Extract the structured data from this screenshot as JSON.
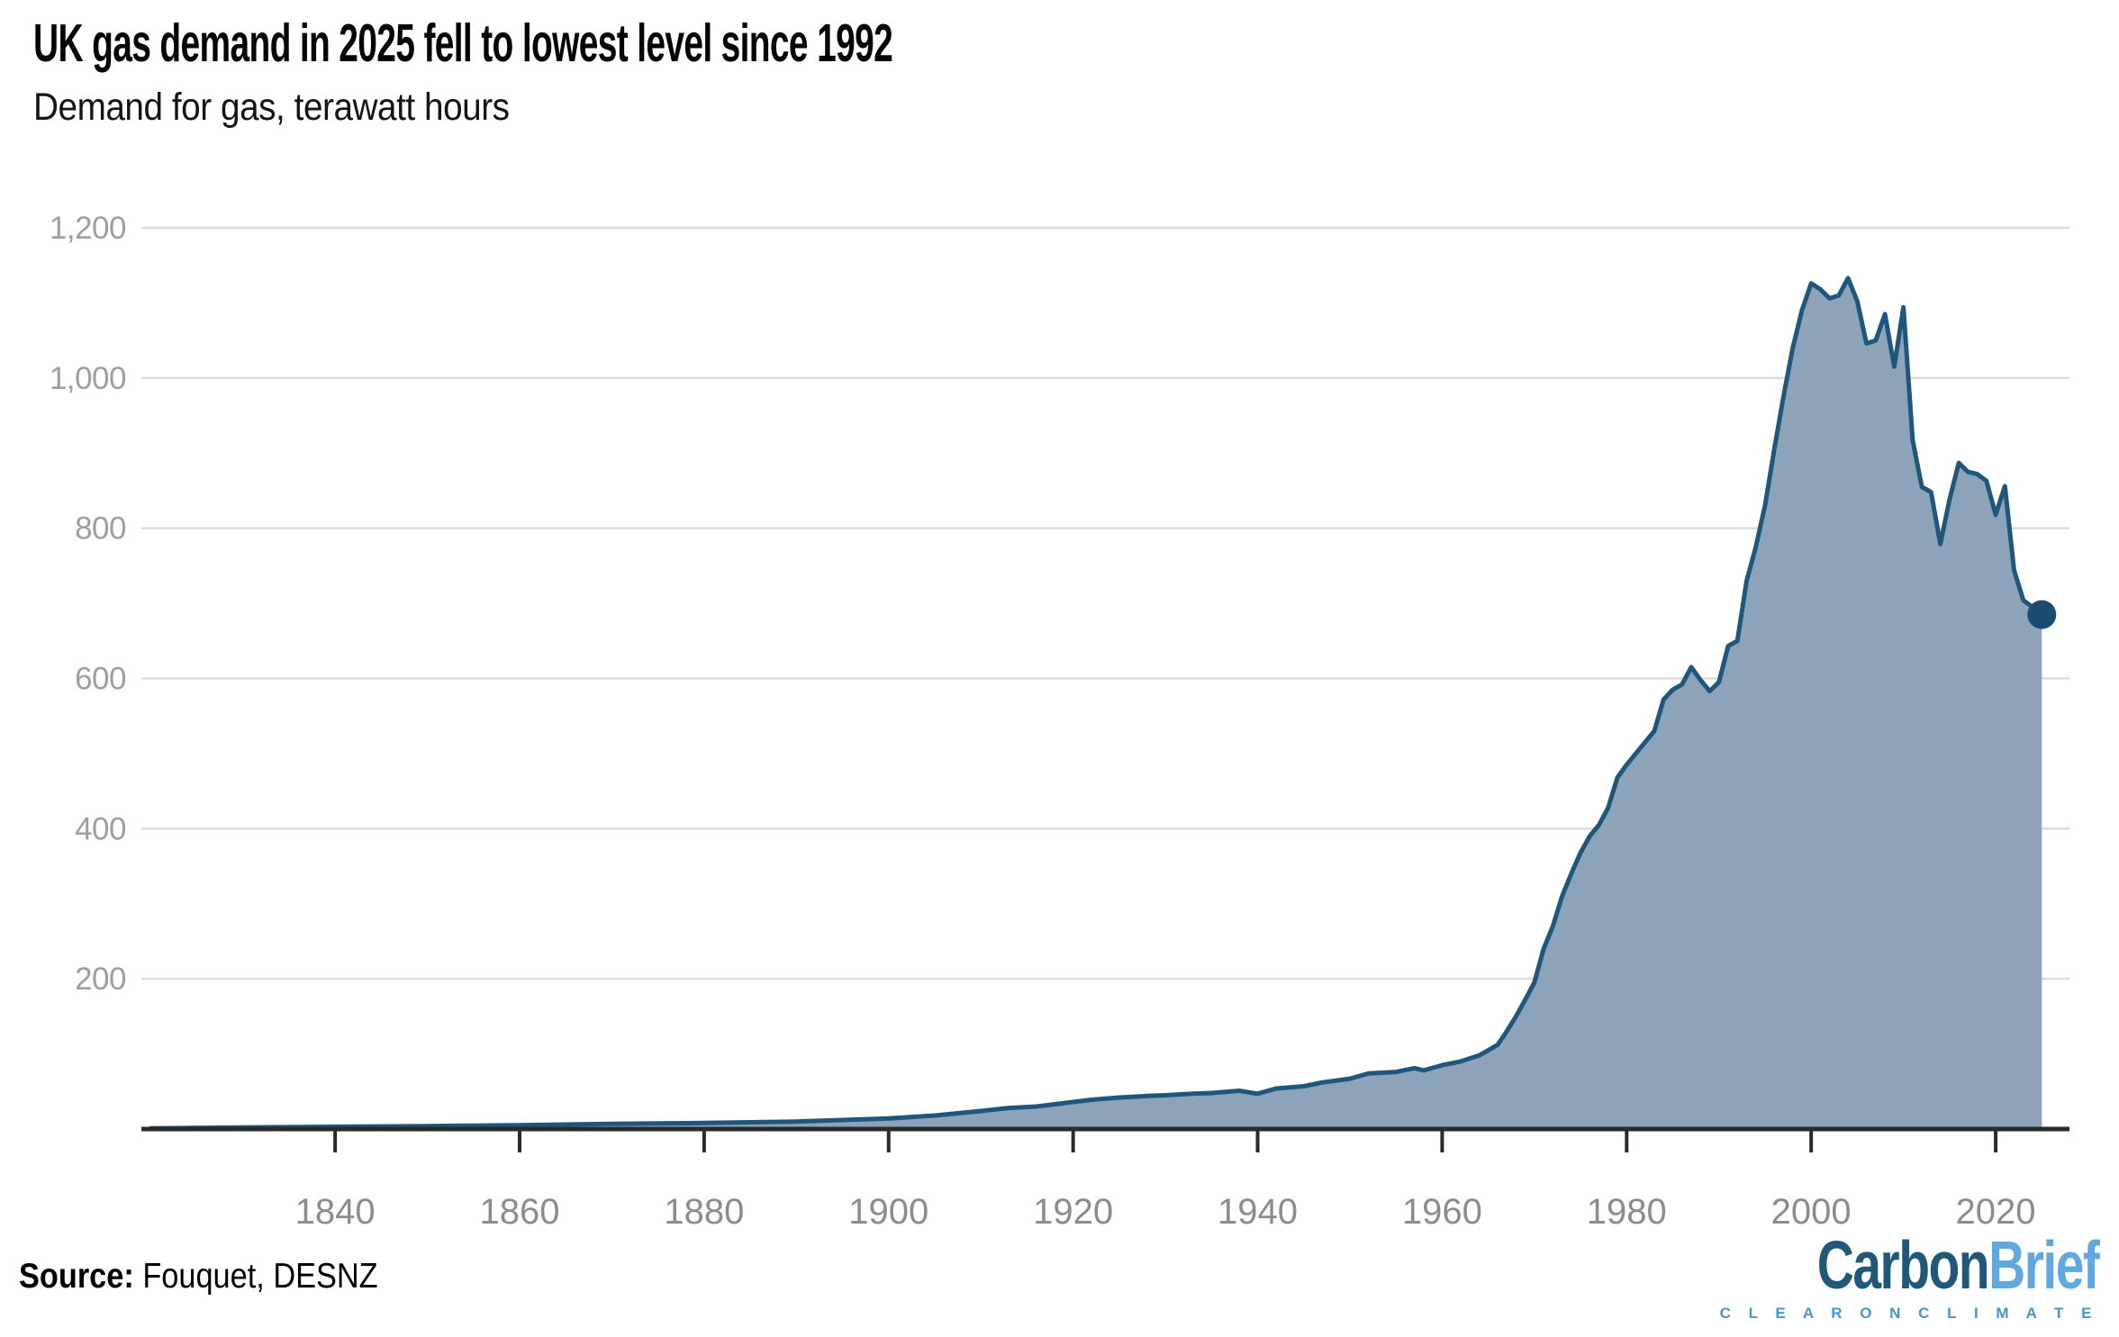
{
  "header": {
    "title": "UK gas demand in 2025 fell to lowest level since 1992",
    "subtitle": "Demand for gas, terawatt hours"
  },
  "footer": {
    "source_label": "Source:",
    "source_value": " Fouquet, DESNZ"
  },
  "logo": {
    "part1": "Carbon",
    "part2": "Brief",
    "tagline": "C L E A R   O N   C L I M A T E"
  },
  "colors": {
    "area_fill": "#8CA3BA",
    "line_stroke": "#1E567C",
    "end_dot": "#1B4B70",
    "gridline": "#DCDCDC",
    "axis_line": "#2B2B2B",
    "tick_mark": "#2B2B2B",
    "y_tick_text": "#9E9E9E",
    "x_tick_text": "#8C8C8C",
    "logo_dark_blue": "#20587A",
    "logo_light_blue": "#5FA9DF"
  },
  "chart_data": {
    "type": "area",
    "title": "UK gas demand in 2025 fell to lowest level since 1992",
    "subtitle": "Demand for gas, terawatt hours",
    "series_name": "UK gas demand, terawatt hours",
    "x": [
      1820,
      1825,
      1830,
      1835,
      1840,
      1845,
      1850,
      1855,
      1860,
      1865,
      1870,
      1875,
      1880,
      1885,
      1890,
      1895,
      1900,
      1905,
      1910,
      1913,
      1916,
      1918,
      1920,
      1922,
      1925,
      1928,
      1930,
      1933,
      1935,
      1938,
      1940,
      1942,
      1945,
      1947,
      1950,
      1952,
      1955,
      1957,
      1958,
      1960,
      1962,
      1964,
      1966,
      1967,
      1968,
      1969,
      1970,
      1971,
      1972,
      1973,
      1974,
      1975,
      1976,
      1977,
      1978,
      1979,
      1980,
      1981,
      1982,
      1983,
      1984,
      1985,
      1986,
      1987,
      1988,
      1989,
      1990,
      1991,
      1992,
      1993,
      1994,
      1995,
      1996,
      1997,
      1998,
      1999,
      2000,
      2001,
      2002,
      2003,
      2004,
      2005,
      2006,
      2007,
      2008,
      2009,
      2010,
      2011,
      2012,
      2013,
      2014,
      2015,
      2016,
      2017,
      2018,
      2019,
      2020,
      2021,
      2022,
      2023,
      2024,
      2025
    ],
    "values": [
      1,
      1.5,
      2,
      2.5,
      3,
      3.5,
      4,
      4.5,
      5,
      6,
      7,
      7.5,
      8,
      9,
      10,
      12,
      14,
      18,
      24,
      28,
      30,
      33,
      36,
      39,
      42,
      44,
      45,
      47,
      48,
      51,
      47,
      54,
      57,
      62,
      67,
      74,
      76,
      81,
      78,
      85,
      90,
      98,
      112,
      130,
      150,
      172,
      195,
      240,
      270,
      310,
      340,
      368,
      390,
      405,
      428,
      468,
      485,
      500,
      515,
      530,
      572,
      585,
      592,
      615,
      598,
      583,
      595,
      643,
      650,
      730,
      775,
      830,
      905,
      975,
      1040,
      1090,
      1126,
      1118,
      1106,
      1110,
      1133,
      1102,
      1046,
      1050,
      1085,
      1015,
      1094,
      917,
      855,
      848,
      779,
      838,
      887,
      875,
      872,
      863,
      818,
      856,
      744,
      704,
      695,
      685
    ],
    "end_marker": {
      "year": 2025,
      "value": 685
    },
    "xlim": [
      1819,
      2028
    ],
    "ylim": [
      0,
      1200
    ],
    "xticks": [
      1840,
      1860,
      1880,
      1900,
      1920,
      1940,
      1960,
      1980,
      2000,
      2020
    ],
    "yticks": [
      200,
      400,
      600,
      800,
      1000,
      1200
    ],
    "ytick_labels": [
      "200",
      "400",
      "600",
      "800",
      "1,000",
      "1,200"
    ],
    "grid": "horizontal",
    "legend": "none",
    "xlabel": "",
    "ylabel": ""
  }
}
